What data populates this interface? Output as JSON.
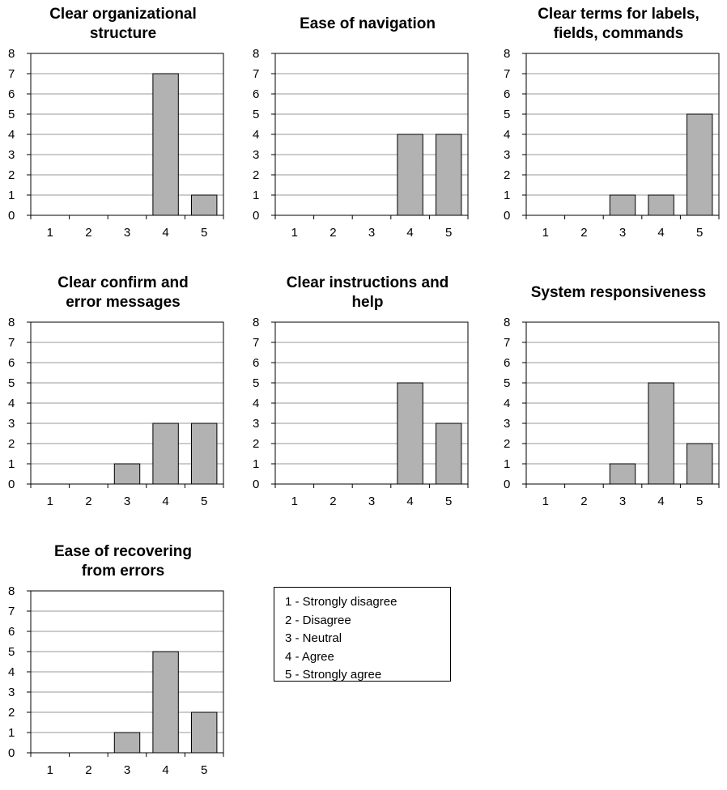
{
  "chart_data": [
    {
      "type": "bar",
      "title": "Clear organizational\nstructure",
      "categories": [
        "1",
        "2",
        "3",
        "4",
        "5"
      ],
      "values": [
        0,
        0,
        0,
        7,
        1
      ],
      "ylim": [
        0,
        8
      ],
      "yticks": [
        "0",
        "1",
        "2",
        "3",
        "4",
        "5",
        "6",
        "7",
        "8"
      ],
      "grid": true,
      "bar_color": "#b2b2b2"
    },
    {
      "type": "bar",
      "title": "Ease of navigation",
      "categories": [
        "1",
        "2",
        "3",
        "4",
        "5"
      ],
      "values": [
        0,
        0,
        0,
        4,
        4
      ],
      "ylim": [
        0,
        8
      ],
      "yticks": [
        "0",
        "1",
        "2",
        "3",
        "4",
        "5",
        "6",
        "7",
        "8"
      ],
      "grid": true,
      "bar_color": "#b2b2b2"
    },
    {
      "type": "bar",
      "title": "Clear terms for labels,\nfields, commands",
      "categories": [
        "1",
        "2",
        "3",
        "4",
        "5"
      ],
      "values": [
        0,
        0,
        1,
        1,
        5
      ],
      "ylim": [
        0,
        8
      ],
      "yticks": [
        "0",
        "1",
        "2",
        "3",
        "4",
        "5",
        "6",
        "7",
        "8"
      ],
      "grid": true,
      "bar_color": "#b2b2b2"
    },
    {
      "type": "bar",
      "title": "Clear confirm and\nerror messages",
      "categories": [
        "1",
        "2",
        "3",
        "4",
        "5"
      ],
      "values": [
        0,
        0,
        1,
        3,
        3
      ],
      "ylim": [
        0,
        8
      ],
      "yticks": [
        "0",
        "1",
        "2",
        "3",
        "4",
        "5",
        "6",
        "7",
        "8"
      ],
      "grid": true,
      "bar_color": "#b2b2b2"
    },
    {
      "type": "bar",
      "title": "Clear instructions and\nhelp",
      "categories": [
        "1",
        "2",
        "3",
        "4",
        "5"
      ],
      "values": [
        0,
        0,
        0,
        5,
        3
      ],
      "ylim": [
        0,
        8
      ],
      "yticks": [
        "0",
        "1",
        "2",
        "3",
        "4",
        "5",
        "6",
        "7",
        "8"
      ],
      "grid": true,
      "bar_color": "#b2b2b2"
    },
    {
      "type": "bar",
      "title": "System responsiveness",
      "categories": [
        "1",
        "2",
        "3",
        "4",
        "5"
      ],
      "values": [
        0,
        0,
        1,
        5,
        2
      ],
      "ylim": [
        0,
        8
      ],
      "yticks": [
        "0",
        "1",
        "2",
        "3",
        "4",
        "5",
        "6",
        "7",
        "8"
      ],
      "grid": true,
      "bar_color": "#b2b2b2"
    },
    {
      "type": "bar",
      "title": "Ease of recovering\nfrom errors",
      "categories": [
        "1",
        "2",
        "3",
        "4",
        "5"
      ],
      "values": [
        0,
        0,
        1,
        5,
        2
      ],
      "ylim": [
        0,
        8
      ],
      "yticks": [
        "0",
        "1",
        "2",
        "3",
        "4",
        "5",
        "6",
        "7",
        "8"
      ],
      "grid": true,
      "bar_color": "#b2b2b2"
    }
  ],
  "legend": {
    "items": [
      "1 - Strongly disagree",
      "2 - Disagree",
      "3 - Neutral",
      "4 - Agree",
      "5 - Strongly agree"
    ]
  }
}
